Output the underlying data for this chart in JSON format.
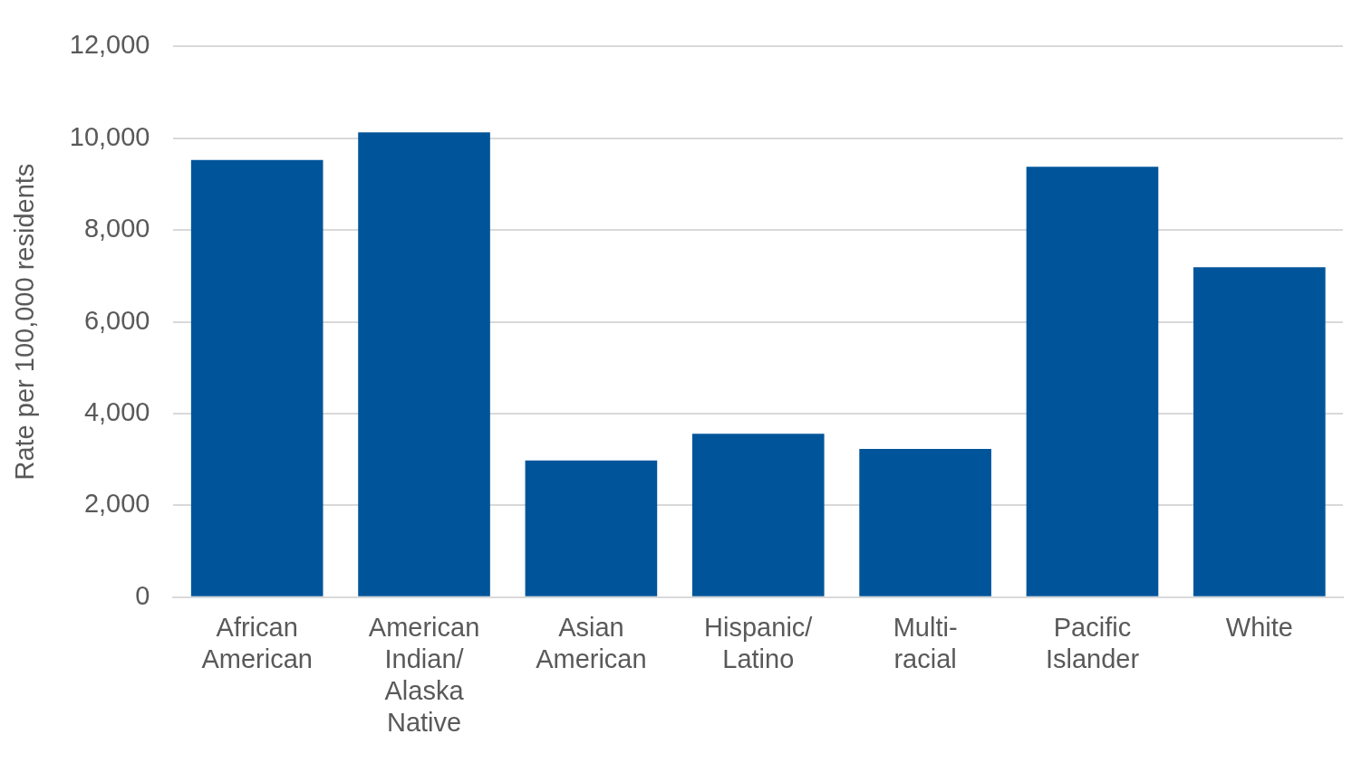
{
  "chart_data": {
    "type": "bar",
    "ylabel": "Rate per 100,000 residents",
    "categories": [
      "African American",
      "American Indian/Alaska Native",
      "Asian American",
      "Hispanic/Latino",
      "Multi-racial",
      "Pacific Islander",
      "White"
    ],
    "values": [
      9530,
      10130,
      2980,
      3560,
      3230,
      9380,
      7190
    ],
    "color": "#00559a",
    "ylim": [
      0,
      12000
    ],
    "yticks": [
      0,
      {
        "value": 2000,
        "label": "2,000"
      },
      {
        "value": 4000,
        "label": "4,000"
      },
      {
        "value": 6000,
        "label": "6,000"
      },
      {
        "value": 8000,
        "label": "8,000"
      },
      {
        "value": 10000,
        "label": "10,000"
      },
      {
        "value": 12000,
        "label": "12,000"
      }
    ],
    "grid": "y",
    "legend": false
  }
}
